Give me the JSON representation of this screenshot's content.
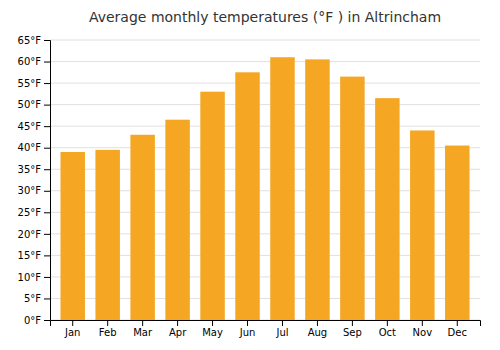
{
  "chart_data": {
    "type": "bar",
    "title": "Average monthly temperatures (°F ) in Altrincham",
    "categories": [
      "Jan",
      "Feb",
      "Mar",
      "Apr",
      "May",
      "Jun",
      "Jul",
      "Aug",
      "Sep",
      "Oct",
      "Nov",
      "Dec"
    ],
    "values": [
      39,
      39.5,
      43,
      46.5,
      53,
      57.5,
      61,
      60.5,
      56.5,
      51.5,
      44,
      40.5
    ],
    "color": "#F5A623",
    "ylim": [
      0,
      65
    ],
    "yticks": [
      {
        "value": 0,
        "label": "0°F"
      },
      {
        "value": 5,
        "label": "5°F"
      },
      {
        "value": 10,
        "label": "10°F"
      },
      {
        "value": 15,
        "label": "15°F"
      },
      {
        "value": 20,
        "label": "20°F"
      },
      {
        "value": 25,
        "label": "25°F"
      },
      {
        "value": 30,
        "label": "30°F"
      },
      {
        "value": 35,
        "label": "35°F"
      },
      {
        "value": 40,
        "label": "40°F"
      },
      {
        "value": 45,
        "label": "45°F"
      },
      {
        "value": 50,
        "label": "50°F"
      },
      {
        "value": 55,
        "label": "55°F"
      },
      {
        "value": 60,
        "label": "60°F"
      },
      {
        "value": 65,
        "label": "65°F"
      }
    ],
    "grid": true
  }
}
